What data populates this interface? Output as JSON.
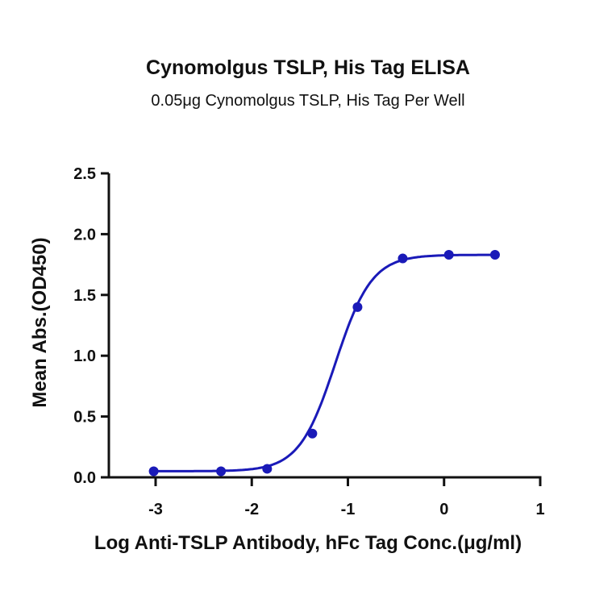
{
  "chart_data": {
    "type": "line",
    "title": "Cynomolgus TSLP, His Tag ELISA",
    "subtitle": "0.05μg Cynomolgus TSLP, His Tag Per Well",
    "xlabel": "Log Anti-TSLP Antibody, hFc Tag Conc.(μg/ml)",
    "ylabel": "Mean Abs.(OD450)",
    "xlim": [
      -3.5,
      1
    ],
    "ylim": [
      0,
      2.5
    ],
    "x_ticks": [
      "-3",
      "-2",
      "-1",
      "0",
      "1"
    ],
    "y_ticks": [
      "0.0",
      "0.5",
      "1.0",
      "1.5",
      "2.0",
      "2.5"
    ],
    "grid": false,
    "legend": null,
    "series": [
      {
        "name": "Cynomolgus TSLP, His Tag",
        "color": "#1a1ab8",
        "fit": "sigmoidal (4PL)",
        "x": [
          -3.02,
          -2.32,
          -1.84,
          -1.37,
          -0.9,
          -0.43,
          0.05,
          0.53
        ],
        "y": [
          0.05,
          0.05,
          0.07,
          0.36,
          1.4,
          1.8,
          1.83,
          1.83
        ]
      }
    ]
  }
}
